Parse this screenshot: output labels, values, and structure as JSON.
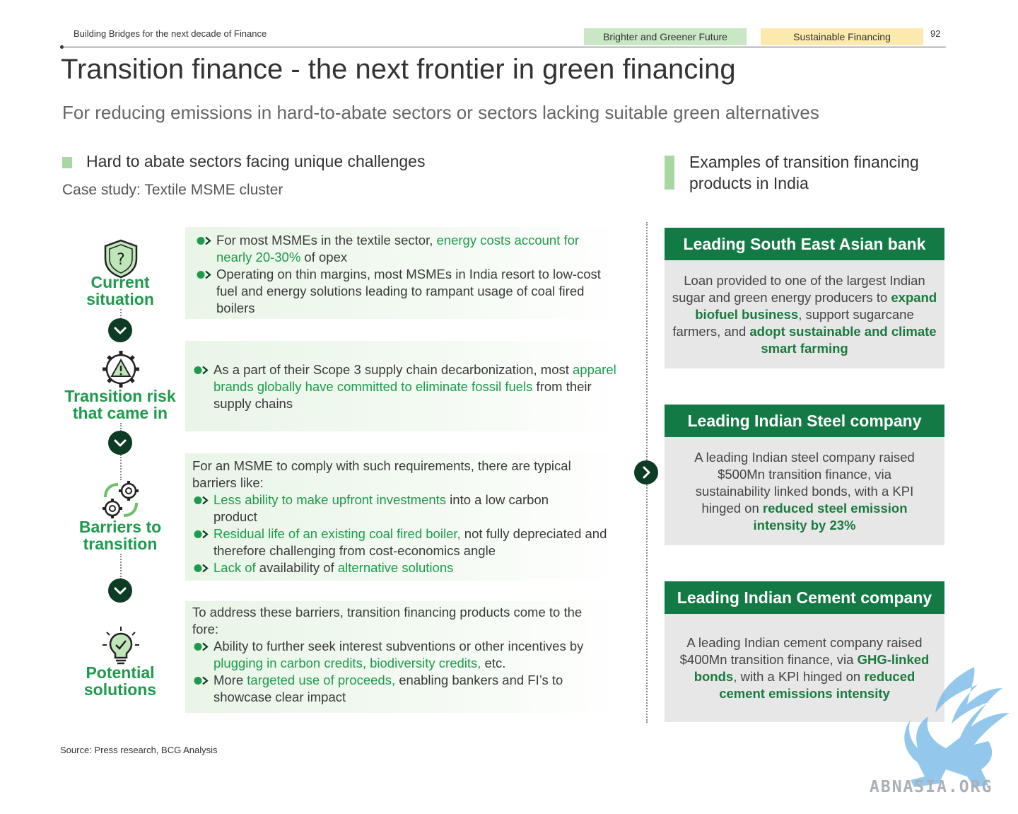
{
  "header": {
    "doc_title": "Building Bridges for the next decade of Finance",
    "tag1": "Brighter and Greener Future",
    "tag2": "Sustainable Financing",
    "page_number": "92"
  },
  "title": "Transition finance - the next frontier in green financing",
  "subtitle": "For reducing emissions in hard-to-abate sectors or sectors lacking suitable green alternatives",
  "left": {
    "heading": "Hard to abate sectors facing unique challenges",
    "case_study": "Case study: Textile MSME cluster",
    "stages": [
      {
        "label_line1": "Current",
        "label_line2": "situation",
        "icon": "shield-question-icon"
      },
      {
        "label_line1": "Transition risk",
        "label_line2": "that came in",
        "icon": "gear-warning-icon"
      },
      {
        "label_line1": "Barriers to",
        "label_line2": "transition",
        "icon": "gears-refresh-icon"
      },
      {
        "label_line1": "Potential",
        "label_line2": "solutions",
        "icon": "lightbulb-check-icon"
      }
    ],
    "cards": {
      "current": {
        "b1_pre": "For most MSMEs in the textile sector, ",
        "b1_hl": "energy costs account for nearly 20-30%",
        "b1_post": " of opex",
        "b2": "Operating on thin margins, most MSMEs in India resort to low-cost fuel and energy solutions leading to rampant usage of coal fired boilers"
      },
      "risk": {
        "b1_pre": "As a part of their Scope 3 supply chain decarbonization, most ",
        "b1_hl": "apparel brands globally have committed to eliminate fossil fuels",
        "b1_post": " from their supply chains"
      },
      "barriers": {
        "intro": "For an MSME to comply with such requirements, there are typical barriers like:",
        "b1_hl": "Less ability to make upfront investments",
        "b1_post": " into a low carbon product",
        "b2_hl": "Residual life of an existing coal fired boiler,",
        "b2_post": " not fully depreciated and therefore challenging from cost-economics angle",
        "b3_hl1": "Lack of",
        "b3_mid": " availability of ",
        "b3_hl2": "alternative solutions"
      },
      "solutions": {
        "intro": "To address these barriers, transition financing products come to the fore:",
        "b1_pre": "Ability to further seek interest subventions or other incentives by ",
        "b1_hl": "plugging in carbon credits, biodiversity credits,",
        "b1_post": " etc.",
        "b2_pre": "More ",
        "b2_hl": "targeted use of proceeds,",
        "b2_post": " enabling bankers and FI’s to showcase clear impact"
      }
    }
  },
  "right": {
    "heading": "Examples of transition financing products in India",
    "boxes": [
      {
        "title": "Leading South East Asian bank",
        "t1": "Loan provided to one of the largest Indian sugar and green energy producers to ",
        "h1": "expand biofuel business",
        "t2": ", support sugarcane farmers, and ",
        "h2": "adopt sustainable and climate smart farming"
      },
      {
        "title": "Leading Indian Steel company",
        "t1": "A leading Indian steel company raised $500Mn transition finance, via sustainability linked bonds, with a KPI hinged on ",
        "h1": "reduced steel emission intensity by 23%"
      },
      {
        "title": "Leading Indian Cement company",
        "t1": "A leading Indian cement company raised $400Mn transition finance, via ",
        "h1": "GHG-linked bonds",
        "t2": ", with a KPI hinged on ",
        "h2": "reduced cement emissions intensity"
      }
    ]
  },
  "source": "Source: Press research, BCG Analysis",
  "watermark": "ABNASIA.ORG",
  "colors": {
    "accent_green": "#1e9a4c",
    "dark_green": "#137a45",
    "tag_green": "#c9e6c5",
    "tag_yellow": "#fbe9ad"
  }
}
